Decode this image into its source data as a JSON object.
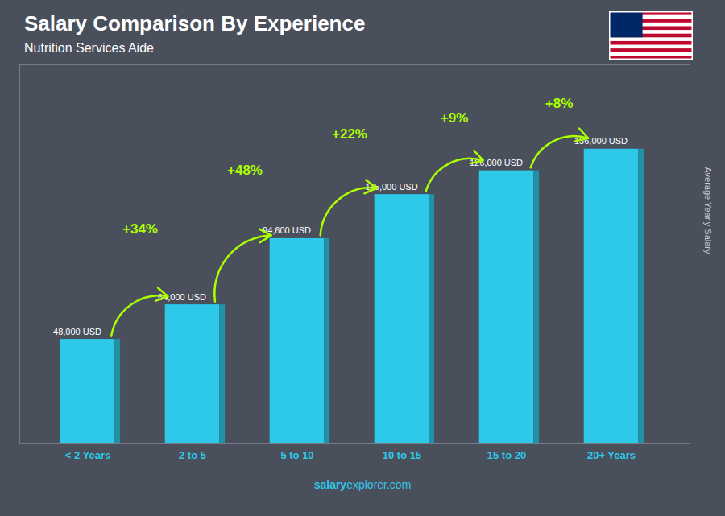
{
  "chart_data": {
    "type": "bar",
    "title": "Salary Comparison By Experience",
    "subtitle": "Nutrition Services Aide",
    "categories": [
      "< 2 Years",
      "2 to 5",
      "5 to 10",
      "10 to 15",
      "15 to 20",
      "20+ Years"
    ],
    "values": [
      48000,
      64000,
      94600,
      115000,
      126000,
      136000
    ],
    "value_labels": [
      "48,000 USD",
      "64,000 USD",
      "94,600 USD",
      "115,000 USD",
      "126,000 USD",
      "136,000 USD"
    ],
    "data_labels": true,
    "color": "#2ec8e8",
    "ylim": [
      0,
      175000
    ],
    "ylabel": "Average Yearly Salary",
    "tick_labels": "x",
    "annotations": [
      "+34%",
      "+48%",
      "+22%",
      "+9%",
      "+8%"
    ],
    "footer": [
      "salary",
      "explorer.com"
    ]
  }
}
